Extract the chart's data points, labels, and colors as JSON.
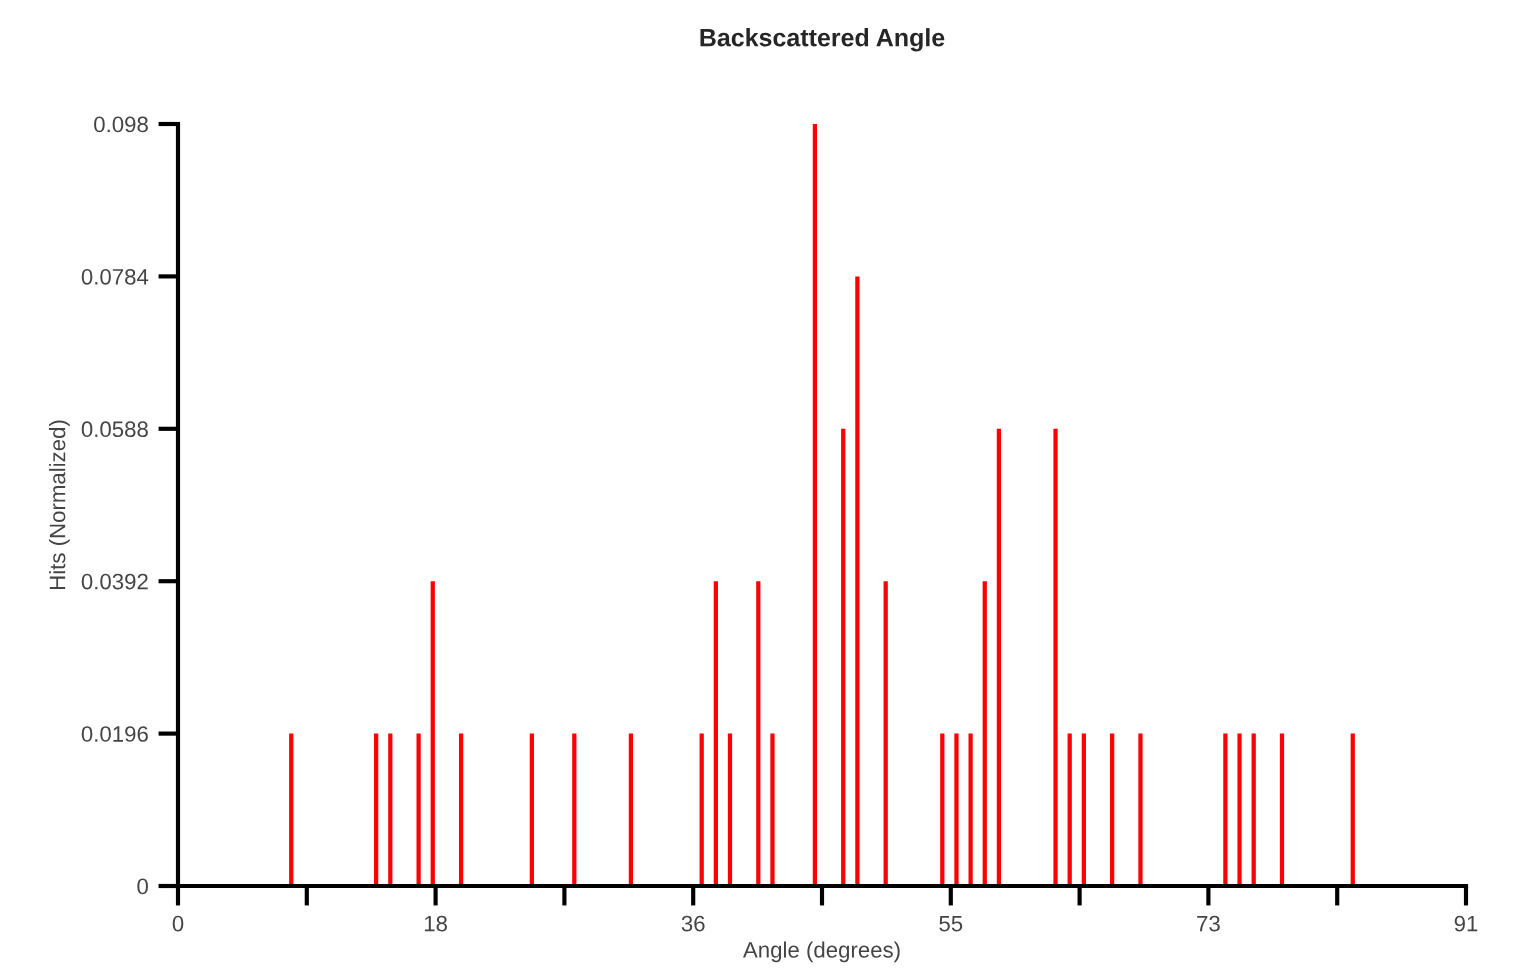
{
  "chart_data": {
    "type": "bar",
    "title": "Backscattered Angle",
    "xlabel": "Angle (degrees)",
    "ylabel": "Hits (Normalized)",
    "x": [
      8,
      14,
      15,
      17,
      18,
      20,
      25,
      28,
      32,
      37,
      38,
      39,
      41,
      42,
      45,
      47,
      48,
      50,
      54,
      55,
      56,
      57,
      58,
      62,
      63,
      64,
      66,
      68,
      74,
      75,
      76,
      78,
      83
    ],
    "series": [
      {
        "color": "#ff0000",
        "values": [
          0.0196,
          0.0196,
          0.0196,
          0.0196,
          0.0392,
          0.0196,
          0.0196,
          0.0196,
          0.0196,
          0.0196,
          0.0392,
          0.0196,
          0.0392,
          0.0196,
          0.098,
          0.0588,
          0.0784,
          0.0392,
          0.0196,
          0.0196,
          0.0196,
          0.0392,
          0.0588,
          0.0588,
          0.0196,
          0.0196,
          0.0196,
          0.0196,
          0.0196,
          0.0196,
          0.0196,
          0.0196,
          0.0196
        ]
      }
    ],
    "xlim": [
      0,
      91
    ],
    "xticks": [
      0,
      {
        "value": 9.1,
        "label": null
      },
      {
        "value": 18.2,
        "label": "18"
      },
      {
        "value": 27.3,
        "label": null
      },
      {
        "value": 36.4,
        "label": "36"
      },
      {
        "value": 45.5,
        "label": null
      },
      {
        "value": 54.6,
        "label": "55"
      },
      {
        "value": 63.7,
        "label": null
      },
      {
        "value": 72.8,
        "label": "73"
      },
      {
        "value": 81.9,
        "label": null
      },
      91
    ],
    "ylim": [
      0,
      0.098
    ],
    "yticks": [
      0,
      0.0196,
      0.0392,
      0.0588,
      0.0784,
      0.098
    ],
    "grid": false,
    "legend": false
  }
}
